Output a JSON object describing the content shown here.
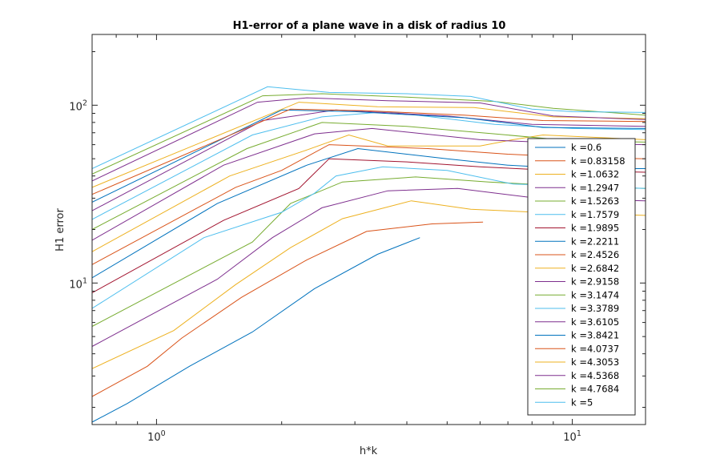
{
  "chart_data": {
    "type": "line",
    "title": "H1-error of a plane wave in a disk of radius 10",
    "xlabel": "h*k",
    "ylabel": "H1 error",
    "xscale": "log",
    "yscale": "log",
    "xlim": [
      0.7,
      15
    ],
    "ylim": [
      1.6,
      250
    ],
    "grid": false,
    "legend_position": "right, lower-middle",
    "x_ticks": [
      {
        "value": 1,
        "base": "10",
        "exp": "0"
      },
      {
        "value": 10,
        "base": "10",
        "exp": "1"
      }
    ],
    "y_ticks": [
      {
        "value": 10,
        "base": "10",
        "exp": "1"
      },
      {
        "value": 100,
        "base": "10",
        "exp": "2"
      }
    ],
    "series": [
      {
        "name": "k =0.6",
        "color": "#0072BD",
        "points": [
          [
            0.7,
            1.65
          ],
          [
            0.85,
            2.1
          ],
          [
            1.2,
            3.4
          ],
          [
            1.7,
            5.3
          ],
          [
            2.4,
            9.3
          ],
          [
            3.4,
            14.5
          ],
          [
            4.3,
            18
          ]
        ]
      },
      {
        "name": "k =0.83158",
        "color": "#D95319",
        "points": [
          [
            0.7,
            2.3
          ],
          [
            0.95,
            3.4
          ],
          [
            1.15,
            4.9
          ],
          [
            1.6,
            8.3
          ],
          [
            2.3,
            13.5
          ],
          [
            3.2,
            19.5
          ],
          [
            4.6,
            21.5
          ],
          [
            6.1,
            22
          ]
        ]
      },
      {
        "name": "k =1.0632",
        "color": "#EDB120",
        "points": [
          [
            0.7,
            3.3
          ],
          [
            1.1,
            5.4
          ],
          [
            1.55,
            9.8
          ],
          [
            2.1,
            15.8
          ],
          [
            2.8,
            23
          ],
          [
            4.1,
            29
          ],
          [
            5.7,
            26
          ],
          [
            8.2,
            25
          ],
          [
            15,
            24
          ]
        ]
      },
      {
        "name": "k =1.2947",
        "color": "#7E2F8E",
        "points": [
          [
            0.7,
            4.4
          ],
          [
            1.4,
            10.5
          ],
          [
            1.9,
            18
          ],
          [
            2.5,
            26.5
          ],
          [
            3.6,
            33
          ],
          [
            5.3,
            34
          ],
          [
            8.2,
            30
          ],
          [
            15,
            29
          ]
        ]
      },
      {
        "name": "k =1.5263",
        "color": "#77AC30",
        "points": [
          [
            0.7,
            5.7
          ],
          [
            1.7,
            17
          ],
          [
            2.1,
            28
          ],
          [
            2.8,
            37
          ],
          [
            4.2,
            39.5
          ],
          [
            6.3,
            37
          ],
          [
            9.8,
            35
          ],
          [
            15,
            34
          ]
        ]
      },
      {
        "name": "k =1.7579",
        "color": "#4DBEEE",
        "points": [
          [
            0.7,
            7.2
          ],
          [
            1.3,
            18
          ],
          [
            2.0,
            25
          ],
          [
            2.4,
            32
          ],
          [
            2.7,
            40
          ],
          [
            3.5,
            45
          ],
          [
            5.0,
            43
          ],
          [
            7.2,
            36
          ],
          [
            10.5,
            35
          ],
          [
            15,
            34
          ]
        ]
      },
      {
        "name": "k =1.9895",
        "color": "#A2142F",
        "points": [
          [
            0.7,
            8.8
          ],
          [
            1.45,
            22.5
          ],
          [
            2.2,
            34
          ],
          [
            2.6,
            50
          ],
          [
            4.0,
            48
          ],
          [
            6.0,
            45
          ],
          [
            9.0,
            43
          ],
          [
            15,
            42
          ]
        ]
      },
      {
        "name": "k =2.2211",
        "color": "#0072BD",
        "points": [
          [
            0.7,
            10.7
          ],
          [
            1.4,
            28
          ],
          [
            2.3,
            46
          ],
          [
            3.05,
            57
          ],
          [
            5.0,
            50
          ],
          [
            7.0,
            46
          ],
          [
            10,
            44
          ],
          [
            15,
            44
          ]
        ]
      },
      {
        "name": "k =2.4526",
        "color": "#D95319",
        "points": [
          [
            0.7,
            12.7
          ],
          [
            1.55,
            34.5
          ],
          [
            2.0,
            43
          ],
          [
            2.6,
            60
          ],
          [
            4.5,
            57
          ],
          [
            7,
            53
          ],
          [
            10,
            51
          ],
          [
            15,
            50
          ]
        ]
      },
      {
        "name": "k =2.6842",
        "color": "#EDB120",
        "points": [
          [
            0.7,
            15
          ],
          [
            1.5,
            40
          ],
          [
            2.3,
            56
          ],
          [
            2.9,
            68
          ],
          [
            3.6,
            59
          ],
          [
            6.0,
            59
          ],
          [
            7.2,
            64
          ],
          [
            8.5,
            68
          ],
          [
            15,
            64
          ]
        ]
      },
      {
        "name": "k =2.9158",
        "color": "#7E2F8E",
        "points": [
          [
            0.7,
            17.4
          ],
          [
            1.45,
            46
          ],
          [
            2.4,
            69
          ],
          [
            3.3,
            74
          ],
          [
            6.0,
            64
          ],
          [
            10,
            61
          ],
          [
            15,
            60
          ]
        ]
      },
      {
        "name": "k =3.1474",
        "color": "#77AC30",
        "points": [
          [
            0.7,
            20
          ],
          [
            1.65,
            57
          ],
          [
            2.5,
            80
          ],
          [
            4.0,
            76
          ],
          [
            6.5,
            69
          ],
          [
            10,
            63
          ],
          [
            15,
            62
          ]
        ]
      },
      {
        "name": "k =3.3789",
        "color": "#4DBEEE",
        "points": [
          [
            0.7,
            22.8
          ],
          [
            1.7,
            68
          ],
          [
            2.5,
            86
          ],
          [
            3.6,
            92
          ],
          [
            6.5,
            78
          ],
          [
            10,
            74
          ],
          [
            15,
            73
          ]
        ]
      },
      {
        "name": "k =3.6105",
        "color": "#7E2F8E",
        "points": [
          [
            0.7,
            25.5
          ],
          [
            1.8,
            82
          ],
          [
            2.7,
            94
          ],
          [
            5.0,
            87
          ],
          [
            8.0,
            78
          ],
          [
            15,
            76
          ]
        ]
      },
      {
        "name": "k =3.8421",
        "color": "#0072BD",
        "points": [
          [
            0.7,
            28.5
          ],
          [
            2.0,
            94
          ],
          [
            3.0,
            92
          ],
          [
            5.5,
            85
          ],
          [
            8.5,
            75
          ],
          [
            15,
            74
          ]
        ]
      },
      {
        "name": "k =4.0737",
        "color": "#D95319",
        "points": [
          [
            0.7,
            31.5
          ],
          [
            2.1,
            95
          ],
          [
            3.2,
            93
          ],
          [
            5.5,
            88
          ],
          [
            8.5,
            82
          ],
          [
            15,
            81
          ]
        ]
      },
      {
        "name": "k =4.3053",
        "color": "#EDB120",
        "points": [
          [
            0.7,
            34.5
          ],
          [
            2.2,
            104
          ],
          [
            3.4,
            98
          ],
          [
            5.8,
            97
          ],
          [
            9.0,
            86
          ],
          [
            15,
            84
          ]
        ]
      },
      {
        "name": "k =4.5368",
        "color": "#7E2F8E",
        "points": [
          [
            0.7,
            37.5
          ],
          [
            1.75,
            104
          ],
          [
            2.3,
            110
          ],
          [
            3.6,
            106
          ],
          [
            6.0,
            103
          ],
          [
            9.0,
            87
          ],
          [
            15,
            83
          ]
        ]
      },
      {
        "name": "k =4.7684",
        "color": "#77AC30",
        "points": [
          [
            0.7,
            41
          ],
          [
            1.8,
            113
          ],
          [
            2.5,
            116
          ],
          [
            4.0,
            111
          ],
          [
            6.5,
            105
          ],
          [
            9.0,
            96
          ],
          [
            15,
            88
          ]
        ]
      },
      {
        "name": "k =5",
        "color": "#4DBEEE",
        "points": [
          [
            0.7,
            44
          ],
          [
            1.85,
            127
          ],
          [
            2.6,
            118
          ],
          [
            4.0,
            116
          ],
          [
            5.7,
            112
          ],
          [
            8.0,
            95
          ],
          [
            10,
            92
          ],
          [
            15,
            91
          ]
        ]
      }
    ]
  }
}
